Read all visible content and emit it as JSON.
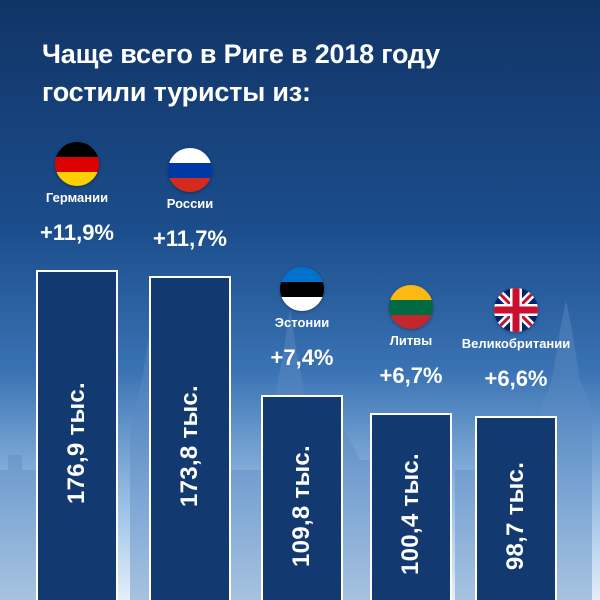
{
  "title_line1": "Чаще всего в Риге в 2018 году",
  "title_line2": "гостили туристы из:",
  "chart_data": {
    "type": "bar",
    "categories": [
      "Германии",
      "России",
      "Эстонии",
      "Литвы",
      "Великобритании"
    ],
    "values": [
      176.9,
      173.8,
      109.8,
      100.4,
      98.7
    ],
    "value_labels": [
      "176,9 тыс.",
      "173,8 тыс.",
      "109,8 тыс.",
      "100,4 тыс.",
      "98,7 тыс."
    ],
    "changes": [
      "+11,9%",
      "+11,7%",
      "+7,4%",
      "+6,7%",
      "+6,6%"
    ],
    "flags": [
      "germany-flag-icon",
      "russia-flag-icon",
      "estonia-flag-icon",
      "lithuania-flag-icon",
      "uk-flag-icon"
    ],
    "colors": {
      "bar_fill": "#133a70",
      "bar_border": "#ffffff",
      "text": "#ffffff"
    }
  }
}
